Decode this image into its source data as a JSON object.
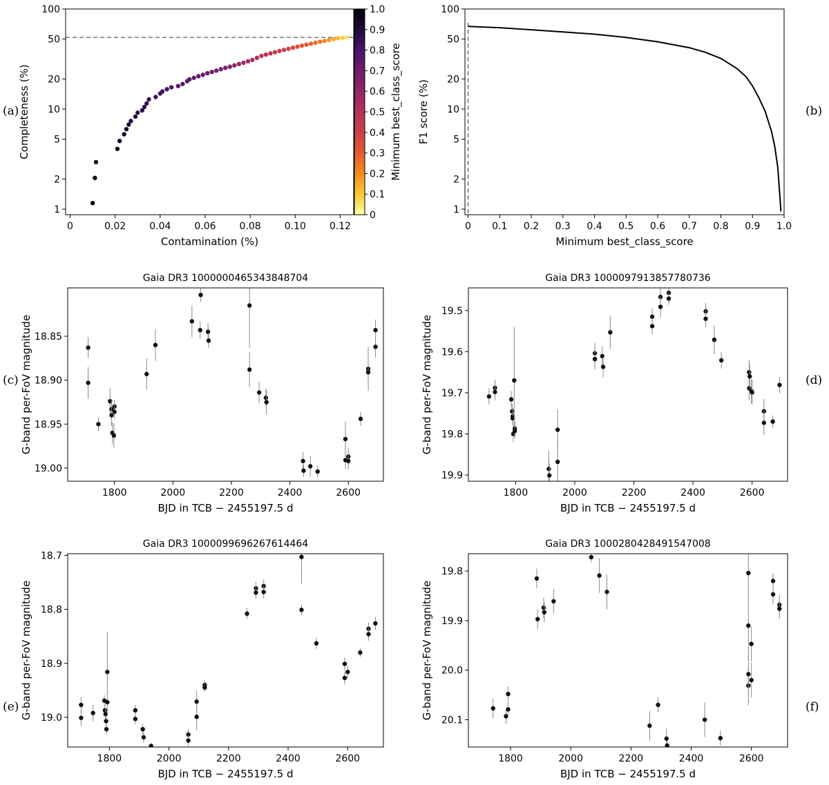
{
  "panel_labels": [
    "(a)",
    "(b)",
    "(c)",
    "(d)",
    "(e)",
    "(f)"
  ],
  "chart_data": [
    {
      "id": "a",
      "type": "scatter",
      "title": "",
      "xlabel": "Contamination (%)",
      "ylabel": "Completeness (%)",
      "xlim": [
        -0.002,
        0.126
      ],
      "ylim": [
        0.88,
        100
      ],
      "yscale": "log",
      "xticks": [
        0,
        0.02,
        0.04,
        0.06,
        0.08,
        0.1,
        0.12
      ],
      "xtick_labels": [
        "0",
        "0.02",
        "0.04",
        "0.06",
        "0.08",
        "0.10",
        "0.12"
      ],
      "yticks": [
        1,
        2,
        5,
        10,
        20,
        50,
        100
      ],
      "ytick_labels": [
        "1",
        "2",
        "5",
        "10",
        "20",
        "50",
        "100"
      ],
      "reference_line": {
        "y": 52,
        "style": "dashed"
      },
      "colorbar": {
        "label": "Minimum best_class_score",
        "range": [
          0,
          1
        ],
        "colormap": "inferno",
        "ticks": [
          0,
          0.1,
          0.2,
          0.3,
          0.4,
          0.5,
          0.6,
          0.7,
          0.8,
          0.9,
          1.0
        ],
        "tick_labels": [
          "0",
          "0.1",
          "0.2",
          "0.3",
          "0.4",
          "0.5",
          "0.6",
          "0.7",
          "0.8",
          "0.9",
          "1.0"
        ]
      },
      "points": [
        [
          0.01,
          1.15,
          0.99
        ],
        [
          0.011,
          2.05,
          0.98
        ],
        [
          0.0115,
          2.95,
          0.97
        ],
        [
          0.021,
          4.0,
          0.95
        ],
        [
          0.022,
          4.8,
          0.94
        ],
        [
          0.024,
          5.6,
          0.93
        ],
        [
          0.025,
          6.3,
          0.92
        ],
        [
          0.026,
          7.0,
          0.91
        ],
        [
          0.027,
          7.6,
          0.9
        ],
        [
          0.029,
          8.4,
          0.89
        ],
        [
          0.03,
          9.2,
          0.88
        ],
        [
          0.032,
          9.7,
          0.87
        ],
        [
          0.033,
          10.5,
          0.86
        ],
        [
          0.034,
          11.4,
          0.85
        ],
        [
          0.035,
          12.5,
          0.84
        ],
        [
          0.038,
          13.2,
          0.83
        ],
        [
          0.04,
          14.3,
          0.82
        ],
        [
          0.041,
          15.0,
          0.81
        ],
        [
          0.043,
          15.8,
          0.8
        ],
        [
          0.045,
          16.5,
          0.79
        ],
        [
          0.048,
          17.0,
          0.78
        ],
        [
          0.05,
          17.8,
          0.77
        ],
        [
          0.052,
          19.0,
          0.76
        ],
        [
          0.053,
          19.8,
          0.75
        ],
        [
          0.055,
          20.5,
          0.74
        ],
        [
          0.057,
          21.3,
          0.73
        ],
        [
          0.059,
          22.0,
          0.72
        ],
        [
          0.061,
          22.8,
          0.71
        ],
        [
          0.063,
          23.5,
          0.7
        ],
        [
          0.065,
          24.2,
          0.69
        ],
        [
          0.067,
          25.0,
          0.68
        ],
        [
          0.069,
          25.8,
          0.66
        ],
        [
          0.071,
          26.5,
          0.64
        ],
        [
          0.073,
          27.3,
          0.62
        ],
        [
          0.075,
          28.2,
          0.6
        ],
        [
          0.077,
          29.0,
          0.58
        ],
        [
          0.079,
          30.0,
          0.56
        ],
        [
          0.081,
          31.0,
          0.54
        ],
        [
          0.083,
          32.5,
          0.52
        ],
        [
          0.085,
          34.0,
          0.5
        ],
        [
          0.087,
          35.0,
          0.48
        ],
        [
          0.089,
          36.0,
          0.46
        ],
        [
          0.091,
          37.0,
          0.44
        ],
        [
          0.093,
          38.0,
          0.42
        ],
        [
          0.095,
          39.0,
          0.4
        ],
        [
          0.097,
          40.0,
          0.38
        ],
        [
          0.099,
          41.0,
          0.36
        ],
        [
          0.101,
          42.0,
          0.34
        ],
        [
          0.103,
          43.0,
          0.32
        ],
        [
          0.105,
          44.0,
          0.3
        ],
        [
          0.107,
          45.0,
          0.28
        ],
        [
          0.109,
          46.0,
          0.26
        ],
        [
          0.111,
          47.0,
          0.24
        ],
        [
          0.113,
          48.0,
          0.21
        ],
        [
          0.115,
          49.0,
          0.18
        ],
        [
          0.117,
          50.0,
          0.15
        ],
        [
          0.119,
          51.0,
          0.12
        ],
        [
          0.121,
          51.5,
          0.09
        ],
        [
          0.123,
          52.0,
          0.05
        ]
      ]
    },
    {
      "id": "b",
      "type": "line",
      "title": "",
      "xlabel": "Minimum best_class_score",
      "ylabel": "F1 score (%)",
      "xlim": [
        -0.01,
        1.0
      ],
      "ylim": [
        0.88,
        100
      ],
      "yscale": "log",
      "xticks": [
        0,
        0.1,
        0.2,
        0.3,
        0.4,
        0.5,
        0.6,
        0.7,
        0.8,
        0.9,
        1.0
      ],
      "xtick_labels": [
        "0",
        "0.1",
        "0.2",
        "0.3",
        "0.4",
        "0.5",
        "0.6",
        "0.7",
        "0.8",
        "0.9",
        "1.0"
      ],
      "yticks": [
        1,
        2,
        5,
        10,
        20,
        50,
        100
      ],
      "ytick_labels": [
        "1",
        "2",
        "5",
        "10",
        "20",
        "50",
        "100"
      ],
      "reference_line": {
        "x": 0,
        "style": "dashed"
      },
      "x": [
        0,
        0.1,
        0.2,
        0.3,
        0.4,
        0.5,
        0.6,
        0.7,
        0.75,
        0.8,
        0.85,
        0.88,
        0.9,
        0.92,
        0.94,
        0.96,
        0.97,
        0.98,
        0.985,
        0.99
      ],
      "y": [
        67,
        65,
        62,
        59,
        56,
        52,
        47,
        41,
        37,
        32,
        25.5,
        21,
        17,
        13,
        9.5,
        6,
        4.3,
        2.6,
        1.6,
        0.95
      ]
    },
    {
      "id": "c",
      "type": "scatter",
      "title": "Gaia DR3 1000000465343848704",
      "xlabel": "BJD in TCB − 2455197.5 d",
      "ylabel": "G-band per-FoV magnitude",
      "xlim": [
        1640,
        2720
      ],
      "ylim": [
        19.015,
        18.795
      ],
      "invert_y": true,
      "xticks": [
        1800,
        2000,
        2200,
        2400,
        2600
      ],
      "xtick_labels": [
        "1800",
        "2000",
        "2200",
        "2400",
        "2600"
      ],
      "yticks": [
        18.85,
        18.9,
        18.95,
        19.0
      ],
      "ytick_labels": [
        "18.85",
        "18.90",
        "18.95",
        "19.00"
      ],
      "points": [
        [
          1710,
          18.863,
          0.012
        ],
        [
          1710,
          18.903,
          0.018
        ],
        [
          1745,
          18.95,
          0.008
        ],
        [
          1785,
          18.924,
          0.015
        ],
        [
          1790,
          18.933,
          0.01
        ],
        [
          1790,
          18.94,
          0.012
        ],
        [
          1793,
          18.96,
          0.012
        ],
        [
          1798,
          18.963,
          0.014
        ],
        [
          1800,
          18.93,
          0.008
        ],
        [
          1800,
          18.936,
          0.008
        ],
        [
          1910,
          18.893,
          0.018
        ],
        [
          1940,
          18.86,
          0.018
        ],
        [
          2065,
          18.833,
          0.018
        ],
        [
          2093,
          18.843,
          0.01
        ],
        [
          2095,
          18.803,
          0.008
        ],
        [
          2120,
          18.845,
          0.01
        ],
        [
          2122,
          18.855,
          0.008
        ],
        [
          2262,
          18.815,
          0.048
        ],
        [
          2262,
          18.888,
          0.02
        ],
        [
          2295,
          18.914,
          0.012
        ],
        [
          2318,
          18.92,
          0.01
        ],
        [
          2320,
          18.925,
          0.014
        ],
        [
          2445,
          18.992,
          0.01
        ],
        [
          2447,
          19.003,
          0.007
        ],
        [
          2470,
          18.998,
          0.012
        ],
        [
          2495,
          19.004,
          0.007
        ],
        [
          2590,
          18.967,
          0.02
        ],
        [
          2590,
          18.991,
          0.01
        ],
        [
          2600,
          18.987,
          0.01
        ],
        [
          2600,
          18.992,
          0.01
        ],
        [
          2642,
          18.944,
          0.008
        ],
        [
          2668,
          18.887,
          0.025
        ],
        [
          2668,
          18.891,
          0.018
        ],
        [
          2693,
          18.843,
          0.012
        ],
        [
          2693,
          18.862,
          0.012
        ]
      ]
    },
    {
      "id": "d",
      "type": "scatter",
      "title": "Gaia DR3 1000097913857780736",
      "xlabel": "BJD in TCB − 2455197.5 d",
      "ylabel": "G-band per-FoV magnitude",
      "xlim": [
        1640,
        2720
      ],
      "ylim": [
        19.915,
        19.445
      ],
      "invert_y": true,
      "xticks": [
        1800,
        2000,
        2200,
        2400,
        2600
      ],
      "xtick_labels": [
        "1800",
        "2000",
        "2200",
        "2400",
        "2600"
      ],
      "yticks": [
        19.5,
        19.6,
        19.7,
        19.8,
        19.9
      ],
      "ytick_labels": [
        "19.5",
        "19.6",
        "19.7",
        "19.8",
        "19.9"
      ],
      "points": [
        [
          1710,
          19.709,
          0.02
        ],
        [
          1730,
          19.688,
          0.02
        ],
        [
          1730,
          19.698,
          0.02
        ],
        [
          1785,
          19.716,
          0.02
        ],
        [
          1788,
          19.745,
          0.018
        ],
        [
          1790,
          19.757,
          0.02
        ],
        [
          1790,
          19.762,
          0.018
        ],
        [
          1792,
          19.8,
          0.02
        ],
        [
          1795,
          19.67,
          0.13
        ],
        [
          1797,
          19.787,
          0.018
        ],
        [
          1797,
          19.793,
          0.018
        ],
        [
          1912,
          19.885,
          0.045
        ],
        [
          1914,
          19.901,
          0.03
        ],
        [
          1942,
          19.79,
          0.05
        ],
        [
          1942,
          19.868,
          0.05
        ],
        [
          2068,
          19.604,
          0.025
        ],
        [
          2068,
          19.618,
          0.025
        ],
        [
          2093,
          19.611,
          0.025
        ],
        [
          2096,
          19.637,
          0.025
        ],
        [
          2120,
          19.553,
          0.04
        ],
        [
          2262,
          19.515,
          0.02
        ],
        [
          2262,
          19.538,
          0.02
        ],
        [
          2290,
          19.467,
          0.03
        ],
        [
          2290,
          19.491,
          0.025
        ],
        [
          2318,
          19.457,
          0.02
        ],
        [
          2318,
          19.471,
          0.015
        ],
        [
          2443,
          19.502,
          0.02
        ],
        [
          2443,
          19.52,
          0.02
        ],
        [
          2472,
          19.571,
          0.035
        ],
        [
          2496,
          19.621,
          0.02
        ],
        [
          2590,
          19.65,
          0.03
        ],
        [
          2590,
          19.689,
          0.03
        ],
        [
          2592,
          19.66,
          0.03
        ],
        [
          2598,
          19.696,
          0.03
        ],
        [
          2600,
          19.699,
          0.03
        ],
        [
          2640,
          19.745,
          0.03
        ],
        [
          2640,
          19.773,
          0.03
        ],
        [
          2670,
          19.77,
          0.015
        ],
        [
          2693,
          19.681,
          0.02
        ]
      ]
    },
    {
      "id": "e",
      "type": "scatter",
      "title": "Gaia DR3 1000099696267614464",
      "xlabel": "BJD in TCB − 2455197.5 d",
      "ylabel": "G-band per-FoV magnitude",
      "xlim": [
        1660,
        2720
      ],
      "ylim": [
        19.055,
        18.697
      ],
      "invert_y": true,
      "xticks": [
        1800,
        2000,
        2200,
        2400,
        2600
      ],
      "xtick_labels": [
        "1800",
        "2000",
        "2200",
        "2400",
        "2600"
      ],
      "yticks": [
        18.7,
        18.8,
        18.9,
        19.0
      ],
      "ytick_labels": [
        "18.7",
        "18.8",
        "18.9",
        "19.0"
      ],
      "points": [
        [
          1705,
          18.977,
          0.015
        ],
        [
          1705,
          19.001,
          0.015
        ],
        [
          1745,
          18.992,
          0.015
        ],
        [
          1783,
          18.969,
          0.01
        ],
        [
          1785,
          18.987,
          0.01
        ],
        [
          1787,
          18.994,
          0.01
        ],
        [
          1789,
          19.007,
          0.01
        ],
        [
          1790,
          19.022,
          0.01
        ],
        [
          1793,
          18.916,
          0.075
        ],
        [
          1793,
          18.972,
          0.01
        ],
        [
          1887,
          18.987,
          0.01
        ],
        [
          1887,
          19.003,
          0.01
        ],
        [
          1912,
          19.022,
          0.01
        ],
        [
          1915,
          19.037,
          0.01
        ],
        [
          1940,
          19.053,
          0.005
        ],
        [
          2065,
          19.032,
          0.01
        ],
        [
          2065,
          19.043,
          0.01
        ],
        [
          2093,
          18.971,
          0.02
        ],
        [
          2093,
          18.999,
          0.025
        ],
        [
          2120,
          18.94,
          0.008
        ],
        [
          2120,
          18.945,
          0.008
        ],
        [
          2262,
          18.808,
          0.01
        ],
        [
          2292,
          18.761,
          0.012
        ],
        [
          2292,
          18.769,
          0.012
        ],
        [
          2318,
          18.757,
          0.012
        ],
        [
          2318,
          18.768,
          0.012
        ],
        [
          2445,
          18.703,
          0.05
        ],
        [
          2445,
          18.801,
          0.01
        ],
        [
          2495,
          18.863,
          0.01
        ],
        [
          2590,
          18.901,
          0.012
        ],
        [
          2590,
          18.927,
          0.012
        ],
        [
          2600,
          18.916,
          0.012
        ],
        [
          2642,
          18.88,
          0.008
        ],
        [
          2670,
          18.836,
          0.012
        ],
        [
          2670,
          18.846,
          0.012
        ],
        [
          2693,
          18.826,
          0.012
        ]
      ]
    },
    {
      "id": "f",
      "type": "scatter",
      "title": "Gaia DR3 1000280428491547008",
      "xlabel": "BJD in TCB − 2455197.5 d",
      "ylabel": "G-band per-FoV magnitude",
      "xlim": [
        1660,
        2720
      ],
      "ylim": [
        20.155,
        19.765
      ],
      "invert_y": true,
      "xticks": [
        1800,
        2000,
        2200,
        2400,
        2600
      ],
      "xtick_labels": [
        "1800",
        "2000",
        "2200",
        "2400",
        "2600"
      ],
      "yticks": [
        19.8,
        19.9,
        20.0,
        20.1
      ],
      "ytick_labels": [
        "19.8",
        "19.9",
        "20.0",
        "20.1"
      ],
      "points": [
        [
          1742,
          20.077,
          0.02
        ],
        [
          1785,
          20.093,
          0.015
        ],
        [
          1792,
          20.079,
          0.015
        ],
        [
          1792,
          20.048,
          0.015
        ],
        [
          1887,
          19.815,
          0.02
        ],
        [
          1890,
          19.897,
          0.02
        ],
        [
          1910,
          19.874,
          0.02
        ],
        [
          1912,
          19.883,
          0.02
        ],
        [
          1943,
          19.861,
          0.025
        ],
        [
          2068,
          19.772,
          0.01
        ],
        [
          2095,
          19.809,
          0.035
        ],
        [
          2120,
          19.842,
          0.035
        ],
        [
          2262,
          20.112,
          0.03
        ],
        [
          2290,
          20.07,
          0.015
        ],
        [
          2318,
          20.138,
          0.02
        ],
        [
          2320,
          20.152,
          0.01
        ],
        [
          2445,
          20.1,
          0.035
        ],
        [
          2497,
          20.137,
          0.015
        ],
        [
          2590,
          19.804,
          0.04
        ],
        [
          2590,
          19.91,
          0.07
        ],
        [
          2590,
          20.031,
          0.04
        ],
        [
          2590,
          20.008,
          0.04
        ],
        [
          2600,
          19.947,
          0.035
        ],
        [
          2600,
          20.02,
          0.035
        ],
        [
          2672,
          19.82,
          0.015
        ],
        [
          2672,
          19.847,
          0.02
        ],
        [
          2693,
          19.868,
          0.02
        ],
        [
          2693,
          19.876,
          0.02
        ]
      ]
    }
  ]
}
